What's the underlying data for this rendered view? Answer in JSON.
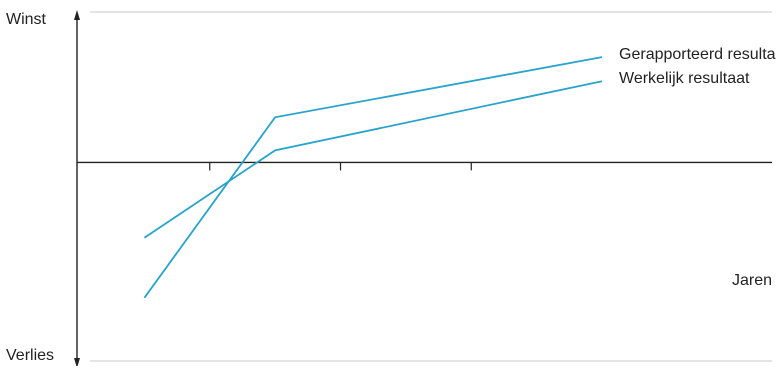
{
  "chart_data": {
    "type": "line",
    "ylabel_top": "Winst",
    "ylabel_bottom": "Verlies",
    "xlabel": "Jaren",
    "x_ticks": 3,
    "grid": false,
    "frame": true,
    "series": [
      {
        "name": "Gerapporteerd resultaat",
        "points": [
          [
            0,
            -0.45
          ],
          [
            1,
            0.15
          ],
          [
            3.5,
            0.35
          ]
        ]
      },
      {
        "name": "Werkelijk resultaat",
        "points": [
          [
            0,
            -0.25
          ],
          [
            1,
            0.04
          ],
          [
            3.5,
            0.27
          ]
        ]
      }
    ],
    "xlim": [
      -0.5,
      4.8
    ],
    "ylim": [
      -0.65,
      0.5
    ]
  },
  "colors": {
    "series_line": "#2aa3cc",
    "axis": "#222222",
    "frame": "#c8c8c8"
  }
}
